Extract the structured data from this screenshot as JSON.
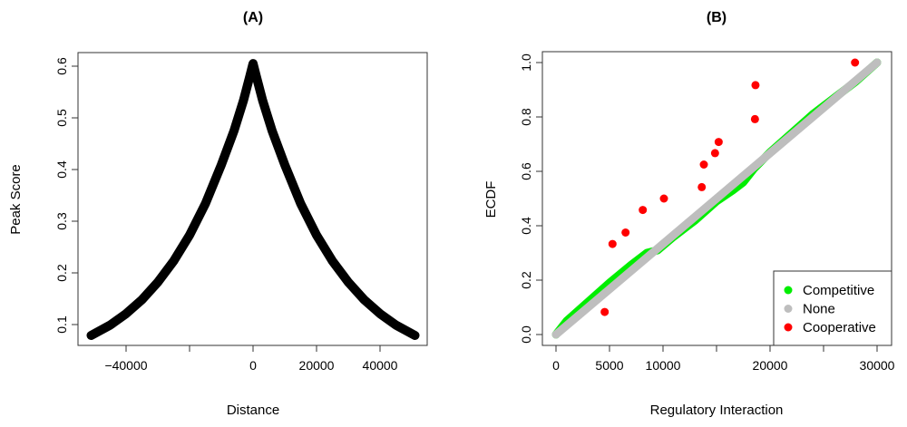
{
  "chart_data": [
    {
      "type": "line",
      "title": "(A)",
      "xlabel": "Distance",
      "ylabel": "Peak Score",
      "xlim": [
        -55000,
        55000
      ],
      "ylim": [
        0.06,
        0.63
      ],
      "xticks": [
        -40000,
        -20000,
        0,
        20000,
        40000
      ],
      "xtick_labels": [
        "-40000",
        "",
        "0",
        "20000",
        "40000"
      ],
      "yticks": [
        0.1,
        0.2,
        0.3,
        0.4,
        0.5,
        0.6
      ],
      "ytick_labels": [
        "0.1",
        "0.2",
        "0.3",
        "0.4",
        "0.5",
        "0.6"
      ],
      "grid": false,
      "series": [
        {
          "color": "#000000",
          "x": [
            -51000,
            -45000,
            -40000,
            -35000,
            -30000,
            -25000,
            -20000,
            -15000,
            -10000,
            -6000,
            -3000,
            -1000,
            0,
            1000,
            3000,
            6000,
            10000,
            15000,
            20000,
            25000,
            30000,
            35000,
            40000,
            45000,
            51000
          ],
          "y": [
            0.079,
            0.099,
            0.121,
            0.148,
            0.182,
            0.223,
            0.273,
            0.334,
            0.409,
            0.475,
            0.534,
            0.581,
            0.605,
            0.581,
            0.534,
            0.475,
            0.409,
            0.334,
            0.273,
            0.223,
            0.182,
            0.148,
            0.121,
            0.099,
            0.079
          ]
        }
      ]
    },
    {
      "type": "scatter",
      "title": "(B)",
      "xlabel": "Regulatory Interaction",
      "ylabel": "ECDF",
      "xlim": [
        -1300,
        31300
      ],
      "ylim": [
        -0.04,
        1.04
      ],
      "xticks": [
        0,
        5000,
        10000,
        15000,
        20000,
        25000,
        30000
      ],
      "xtick_labels": [
        "0",
        "5000",
        "10000",
        "",
        "20000",
        "",
        "30000"
      ],
      "yticks": [
        0.0,
        0.2,
        0.4,
        0.6,
        0.8,
        1.0
      ],
      "ytick_labels": [
        "0.0",
        "0.2",
        "0.4",
        "0.6",
        "0.8",
        "1.0"
      ],
      "grid": false,
      "legend": {
        "position": "bottom-right",
        "entries": [
          "Competitive",
          "None",
          "Cooperative"
        ]
      },
      "series": [
        {
          "name": "Competitive",
          "color": "#00ee00",
          "x": [
            0,
            1000,
            3000,
            5000,
            7000,
            8500,
            9500,
            11000,
            13000,
            15000,
            16500,
            17500,
            18500,
            20000,
            22000,
            24000,
            26000,
            28000,
            30000
          ],
          "y": [
            0,
            0.05,
            0.12,
            0.19,
            0.255,
            0.3,
            0.31,
            0.36,
            0.42,
            0.49,
            0.53,
            0.56,
            0.61,
            0.67,
            0.74,
            0.81,
            0.87,
            0.93,
            1.0
          ]
        },
        {
          "name": "None",
          "color": "#bebebe",
          "x": [
            0,
            30000
          ],
          "y": [
            0,
            1.0
          ]
        },
        {
          "name": "Cooperative",
          "color": "#ff0000",
          "x": [
            4550,
            5280,
            6500,
            8110,
            10085,
            13620,
            13815,
            14860,
            15200,
            18590,
            18640,
            27940
          ],
          "y": [
            0.083,
            0.333,
            0.375,
            0.458,
            0.5,
            0.542,
            0.625,
            0.667,
            0.708,
            0.792,
            0.917,
            1.0
          ]
        }
      ]
    }
  ]
}
